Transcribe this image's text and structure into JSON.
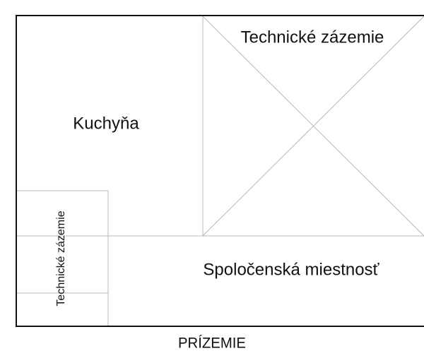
{
  "rooms": [
    {
      "label": "Technické zázemie"
    },
    {
      "label": "Kuchyňa"
    },
    {
      "label": "Spoločenská miestnosť"
    },
    {
      "label": "Technické zázemie"
    }
  ],
  "footer": {
    "title": "PRÍZEMIE"
  }
}
